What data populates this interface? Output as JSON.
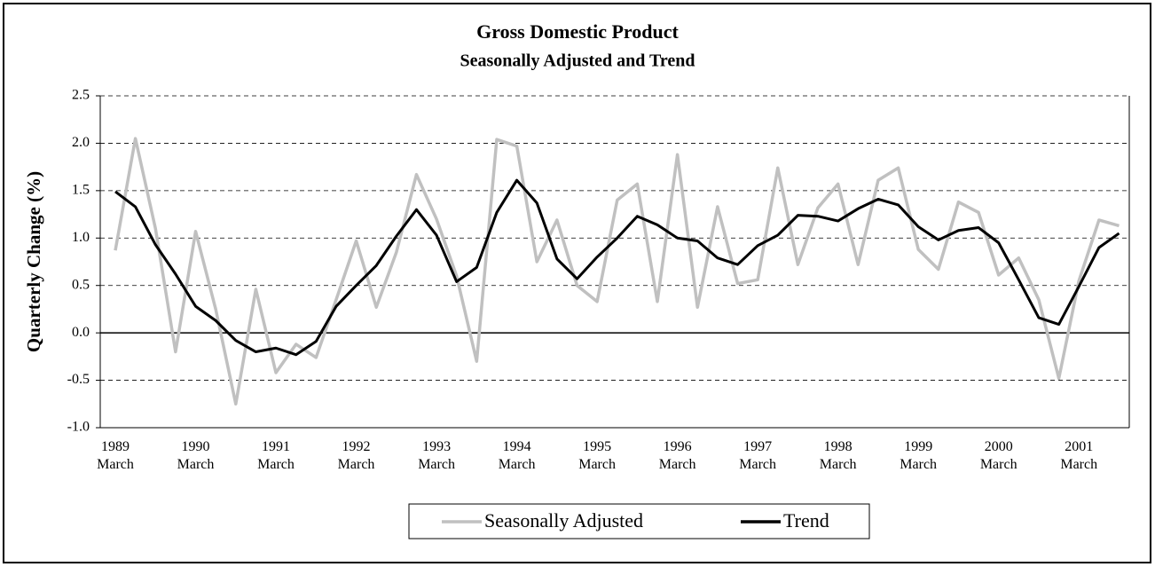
{
  "chart_data": {
    "type": "line",
    "title": "Gross Domestic Product",
    "subtitle": "Seasonally Adjusted and Trend",
    "y_label": "Quarterly Change (%)",
    "categories": [
      "1989 March",
      null,
      null,
      null,
      "1990 March",
      null,
      null,
      null,
      "1991 March",
      null,
      null,
      null,
      "1992 March",
      null,
      null,
      null,
      "1993 March",
      null,
      null,
      null,
      "1994 March",
      null,
      null,
      null,
      "1995 March",
      null,
      null,
      null,
      "1996 March",
      null,
      null,
      null,
      "1997 March",
      null,
      null,
      null,
      "1998 March",
      null,
      null,
      null,
      "1999 March",
      null,
      null,
      null,
      "2000 March",
      null,
      null,
      null,
      "2001 March",
      null,
      null
    ],
    "series": [
      {
        "name": "Seasonally Adjusted",
        "color": "#c0c0c0",
        "values": [
          0.87,
          2.05,
          1.1,
          -0.2,
          1.07,
          0.25,
          -0.75,
          0.46,
          -0.42,
          -0.12,
          -0.26,
          0.35,
          0.97,
          0.27,
          0.85,
          1.67,
          1.2,
          0.6,
          -0.3,
          2.04,
          1.97,
          0.75,
          1.19,
          0.5,
          0.33,
          1.4,
          1.57,
          0.33,
          1.88,
          0.27,
          1.33,
          0.52,
          0.56,
          1.74,
          0.72,
          1.32,
          1.57,
          0.72,
          1.61,
          1.74,
          0.88,
          0.67,
          1.38,
          1.27,
          0.61,
          0.79,
          0.35,
          -0.48,
          0.55,
          1.19,
          1.13
        ]
      },
      {
        "name": "Trend",
        "color": "#000000",
        "values": [
          1.49,
          1.33,
          0.93,
          0.62,
          0.28,
          0.13,
          -0.08,
          -0.2,
          -0.16,
          -0.23,
          -0.09,
          0.28,
          0.5,
          0.71,
          1.02,
          1.3,
          1.03,
          0.54,
          0.69,
          1.27,
          1.61,
          1.37,
          0.78,
          0.57,
          0.8,
          1.0,
          1.23,
          1.14,
          1.0,
          0.97,
          0.79,
          0.72,
          0.92,
          1.03,
          1.24,
          1.23,
          1.18,
          1.31,
          1.41,
          1.35,
          1.12,
          0.98,
          1.08,
          1.11,
          0.95,
          0.56,
          0.16,
          0.09,
          0.49,
          0.9,
          1.05
        ]
      }
    ],
    "ylim": [
      -1,
      2.5
    ],
    "yticks": [
      {
        "value": -1,
        "label": "-1.0"
      },
      -0.5,
      {
        "value": 0,
        "label": "0.0"
      },
      0.5,
      {
        "value": 1,
        "label": "1.0"
      },
      1.5,
      {
        "value": 2,
        "label": "2.0"
      },
      2.5
    ],
    "grid": true,
    "legend": "bottom"
  }
}
